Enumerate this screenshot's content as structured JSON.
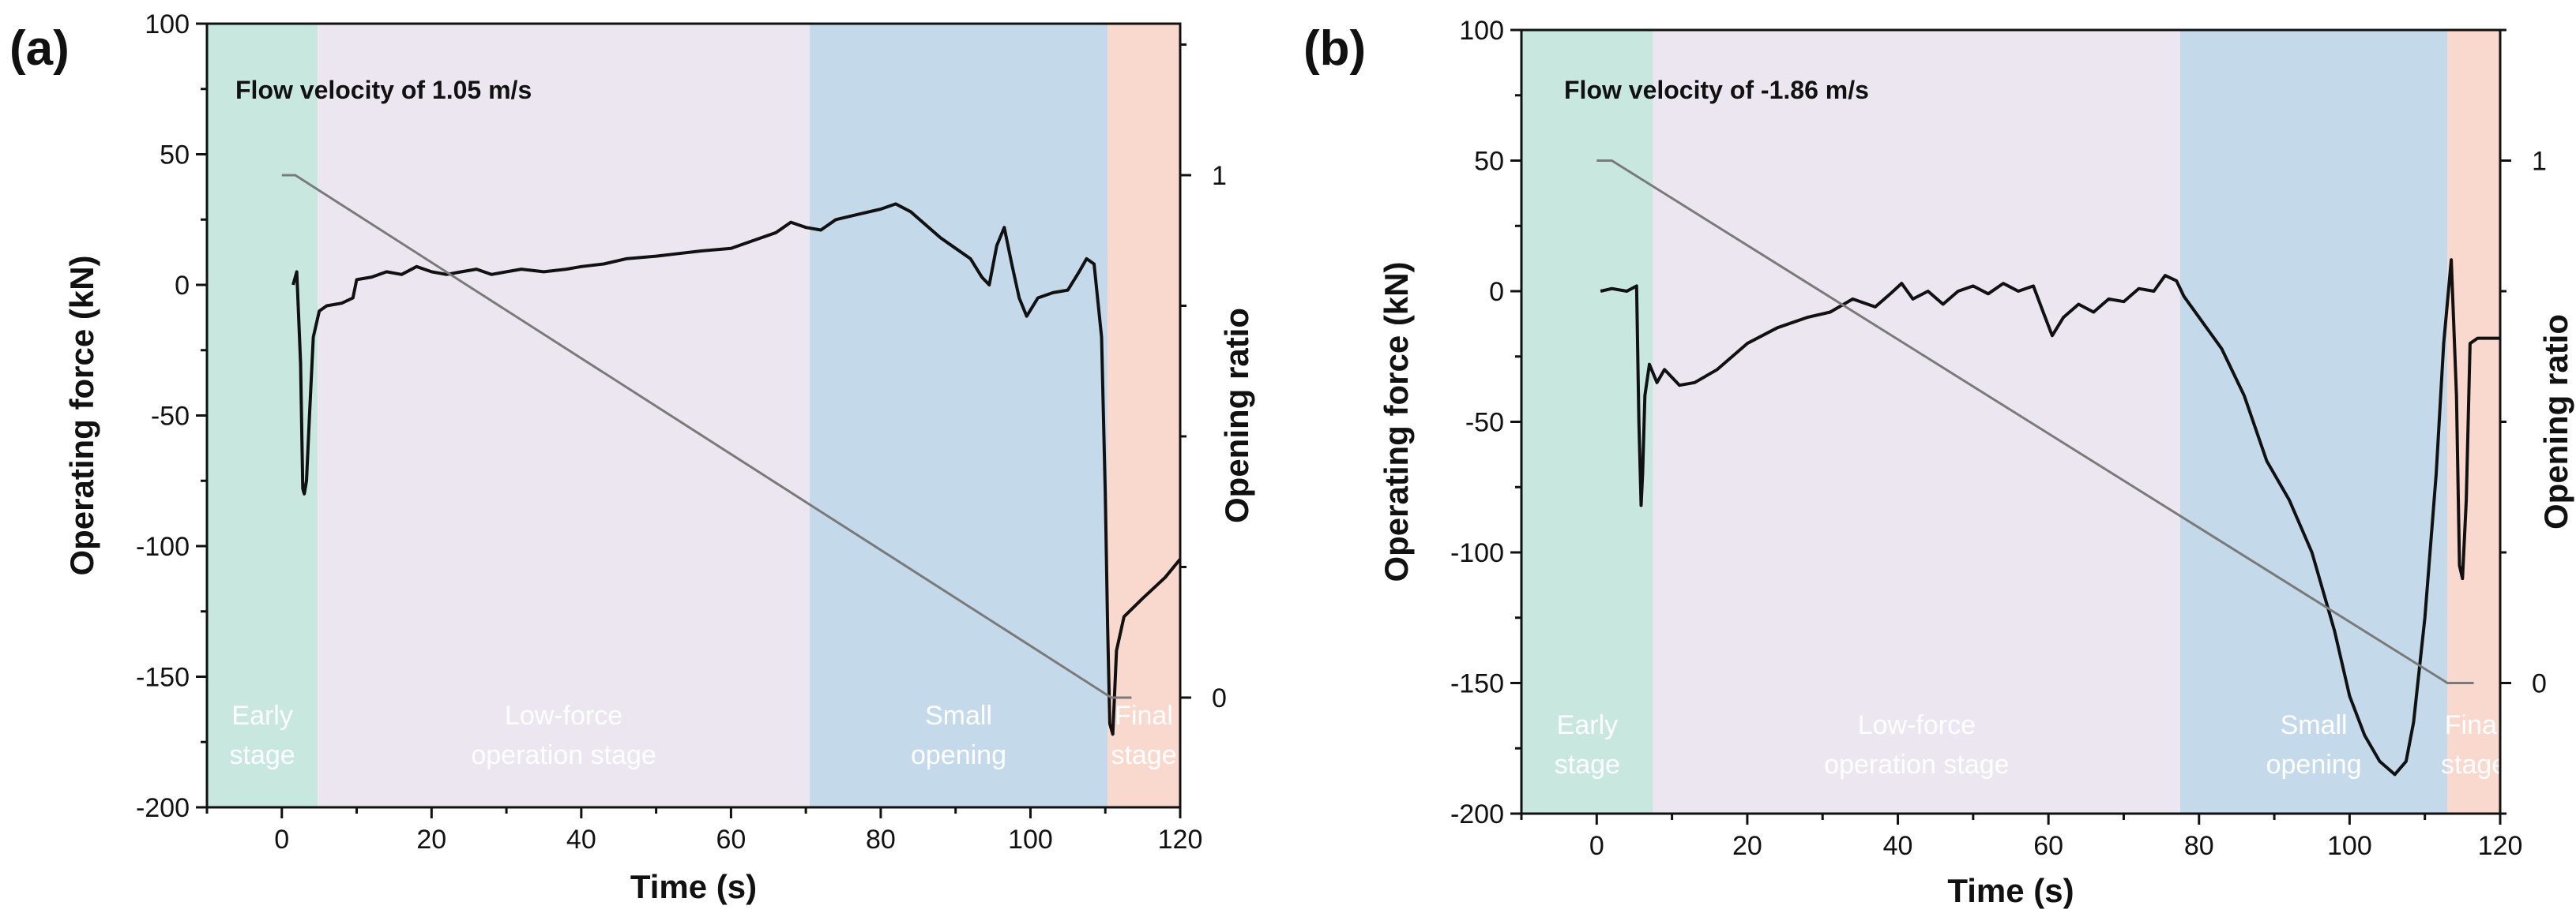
{
  "chart_data": [
    {
      "type": "line",
      "panel_label": "(a)",
      "annotation": "Flow velocity of 1.05 m/s",
      "xlabel": "Time (s)",
      "ylabel": "Operating force (kN)",
      "y2label": "Opening ratio",
      "xlim": [
        -10,
        120
      ],
      "ylim": [
        -200,
        100
      ],
      "y2lim": [
        -0.21,
        1.29
      ],
      "xticks": [
        0,
        20,
        40,
        60,
        80,
        100,
        120
      ],
      "yticks": [
        100,
        50,
        0,
        -50,
        -100,
        -150,
        -200
      ],
      "y2ticks": [
        1,
        0
      ],
      "stages": [
        {
          "name": "early",
          "x0": -10,
          "x1": 4.8,
          "color": "#c8e8df",
          "lines": [
            "Early",
            "stage"
          ]
        },
        {
          "name": "low-force",
          "x0": 4.8,
          "x1": 70.5,
          "color": "#ece6f0",
          "lines": [
            "Low-force",
            "operation stage"
          ]
        },
        {
          "name": "small-opening",
          "x0": 70.5,
          "x1": 110.3,
          "color": "#c4d9e9",
          "lines": [
            "Small",
            "opening"
          ]
        },
        {
          "name": "final",
          "x0": 110.3,
          "x1": 120,
          "color": "#f9d8cd",
          "lines": [
            "Final",
            "stage"
          ]
        }
      ],
      "series": [
        {
          "name": "Operating force",
          "axis": "left",
          "color": "#111111",
          "x": [
            1.5,
            2.0,
            2.5,
            2.8,
            3.0,
            3.3,
            3.7,
            4.2,
            5.0,
            6.0,
            8.0,
            9.5,
            10.0,
            12.0,
            14.0,
            16.0,
            18.0,
            20.0,
            22.0,
            24.0,
            26.0,
            28.0,
            30.0,
            32.0,
            35.0,
            38.0,
            40.0,
            43.0,
            46.0,
            50.0,
            53.0,
            56.0,
            60.0,
            63.0,
            66.0,
            68.0,
            70.0,
            72.0,
            74.0,
            77.0,
            80.0,
            82.0,
            84.0,
            86.0,
            88.0,
            90.0,
            92.0,
            93.5,
            94.5,
            95.5,
            96.5,
            97.5,
            98.5,
            99.5,
            101.0,
            103.0,
            105.0,
            106.5,
            107.5,
            108.5,
            109.5,
            110.0,
            110.3,
            110.6,
            111.0,
            111.5,
            112.5,
            115.0,
            118.0,
            120.0
          ],
          "y": [
            0,
            5,
            -30,
            -78,
            -80,
            -75,
            -50,
            -20,
            -10,
            -8,
            -7,
            -5,
            2,
            3,
            5,
            4,
            7,
            5,
            4,
            5,
            6,
            4,
            5,
            6,
            5,
            6,
            7,
            8,
            10,
            11,
            12,
            13,
            14,
            17,
            20,
            24,
            22,
            21,
            25,
            27,
            29,
            31,
            28,
            23,
            18,
            14,
            10,
            3,
            0,
            15,
            22,
            8,
            -5,
            -12,
            -5,
            -3,
            -2,
            5,
            10,
            8,
            -20,
            -80,
            -130,
            -168,
            -172,
            -140,
            -127,
            -120,
            -112,
            -105
          ]
        },
        {
          "name": "Opening ratio",
          "axis": "right",
          "color": "#7a7a7a",
          "x": [
            0,
            1.8,
            110.8,
            113.5
          ],
          "y": [
            1,
            1,
            0,
            0
          ]
        }
      ]
    },
    {
      "type": "line",
      "panel_label": "(b)",
      "annotation": "Flow velocity of -1.86 m/s",
      "xlabel": "Time (s)",
      "ylabel": "Operating force (kN)",
      "y2label": "Opening ratio",
      "xlim": [
        -10,
        120
      ],
      "ylim": [
        -200,
        100
      ],
      "y2lim": [
        -0.25,
        1.25
      ],
      "xticks": [
        0,
        20,
        40,
        60,
        80,
        100,
        120
      ],
      "yticks": [
        100,
        50,
        0,
        -50,
        -100,
        -150,
        -200
      ],
      "y2ticks": [
        1,
        0
      ],
      "stages": [
        {
          "name": "early",
          "x0": -10,
          "x1": 7.5,
          "color": "#c8e8df",
          "lines": [
            "Early",
            "stage"
          ]
        },
        {
          "name": "low-force",
          "x0": 7.5,
          "x1": 77.5,
          "color": "#ece6f0",
          "lines": [
            "Low-force",
            "operation stage"
          ]
        },
        {
          "name": "small-opening",
          "x0": 77.5,
          "x1": 113,
          "color": "#c4d9e9",
          "lines": [
            "Small",
            "opening"
          ]
        },
        {
          "name": "final",
          "x0": 113,
          "x1": 120,
          "color": "#f9d8cd",
          "lines": [
            "Final",
            "stage"
          ]
        }
      ],
      "series": [
        {
          "name": "Operating force",
          "axis": "left",
          "color": "#111111",
          "x": [
            0.5,
            2.0,
            4.0,
            5.3,
            5.6,
            5.9,
            6.1,
            6.4,
            7.0,
            8.0,
            9.0,
            11.0,
            13.0,
            16.0,
            20.0,
            24.0,
            28.0,
            31.0,
            34.0,
            37.0,
            39.0,
            40.5,
            42.0,
            44.0,
            46.0,
            48.0,
            50.0,
            52.0,
            54.0,
            56.0,
            58.0,
            59.3,
            60.5,
            62.0,
            64.0,
            66.0,
            68.0,
            70.0,
            72.0,
            74.0,
            75.5,
            77.0,
            78.0,
            80.0,
            83.0,
            86.0,
            89.0,
            92.0,
            95.0,
            98.0,
            100.0,
            102.0,
            104.0,
            106.0,
            107.5,
            108.5,
            110.0,
            111.5,
            112.5,
            113.5,
            114.2,
            114.6,
            115.0,
            115.5,
            116.0,
            117.0,
            120.0
          ],
          "y": [
            0,
            1,
            0,
            2,
            -50,
            -82,
            -70,
            -40,
            -28,
            -35,
            -30,
            -36,
            -35,
            -30,
            -20,
            -14,
            -10,
            -8,
            -3,
            -6,
            -1,
            3,
            -3,
            0,
            -5,
            0,
            2,
            -1,
            3,
            0,
            2,
            -8,
            -17,
            -10,
            -5,
            -8,
            -3,
            -4,
            1,
            0,
            6,
            4,
            -2,
            -10,
            -22,
            -40,
            -65,
            -80,
            -100,
            -130,
            -155,
            -170,
            -180,
            -185,
            -180,
            -165,
            -125,
            -70,
            -20,
            12,
            -40,
            -105,
            -110,
            -80,
            -20,
            -18,
            -18
          ]
        },
        {
          "name": "Opening ratio",
          "axis": "right",
          "color": "#7a7a7a",
          "x": [
            0,
            2.0,
            113,
            116.5
          ],
          "y": [
            1,
            1,
            0,
            0
          ]
        }
      ]
    }
  ]
}
